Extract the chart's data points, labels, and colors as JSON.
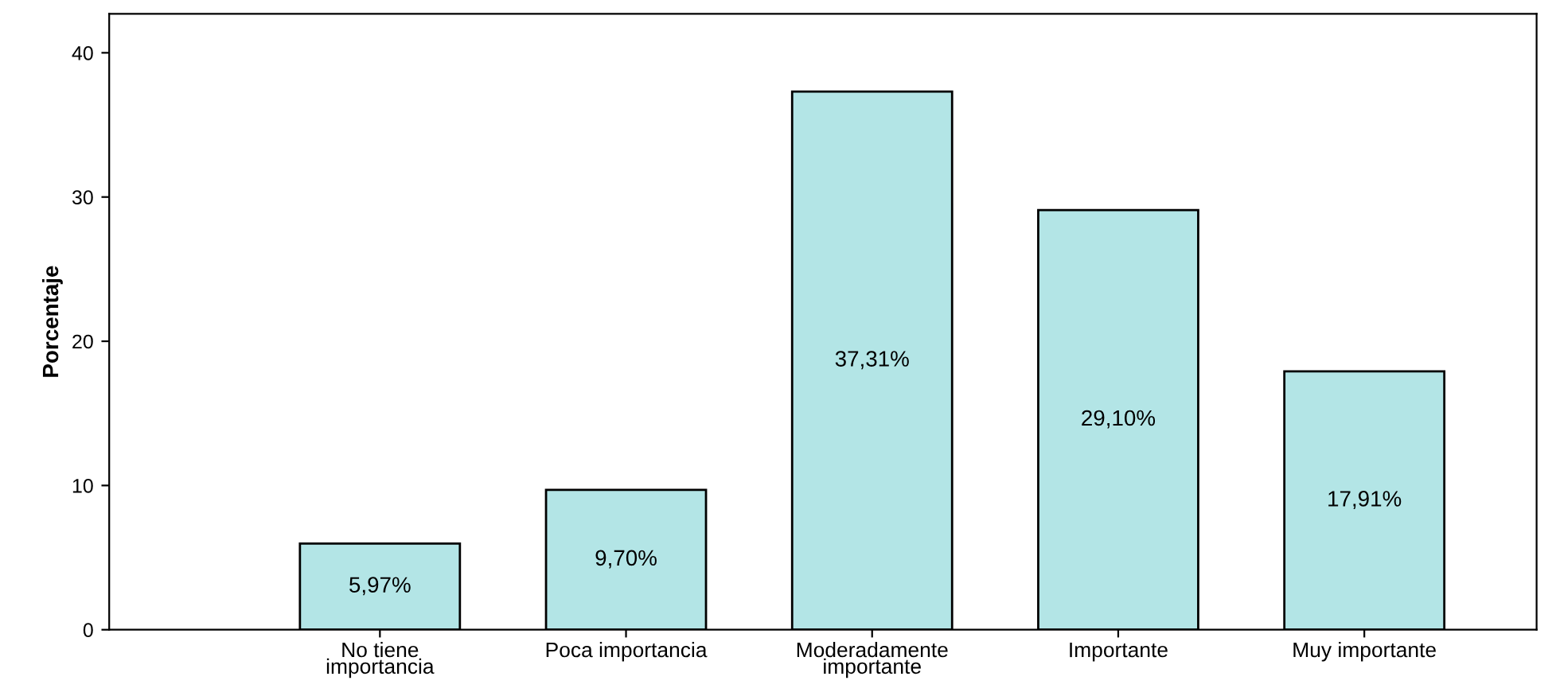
{
  "chart_data": {
    "type": "bar",
    "ylabel": "Porcentaje",
    "categories": [
      "No tiene\nimportancia",
      "Poca importancia",
      "Moderadamente\nimportante",
      "Importante",
      "Muy importante"
    ],
    "values": [
      5.97,
      9.7,
      37.31,
      29.1,
      17.91
    ],
    "value_labels": [
      "5,97%",
      "9,70%",
      "37,31%",
      "29,10%",
      "17,91%"
    ],
    "color": "#b3e5e6",
    "ylim": [
      0,
      42.7
    ],
    "yticks": [
      0,
      10,
      20,
      30,
      40
    ],
    "grid": false
  }
}
